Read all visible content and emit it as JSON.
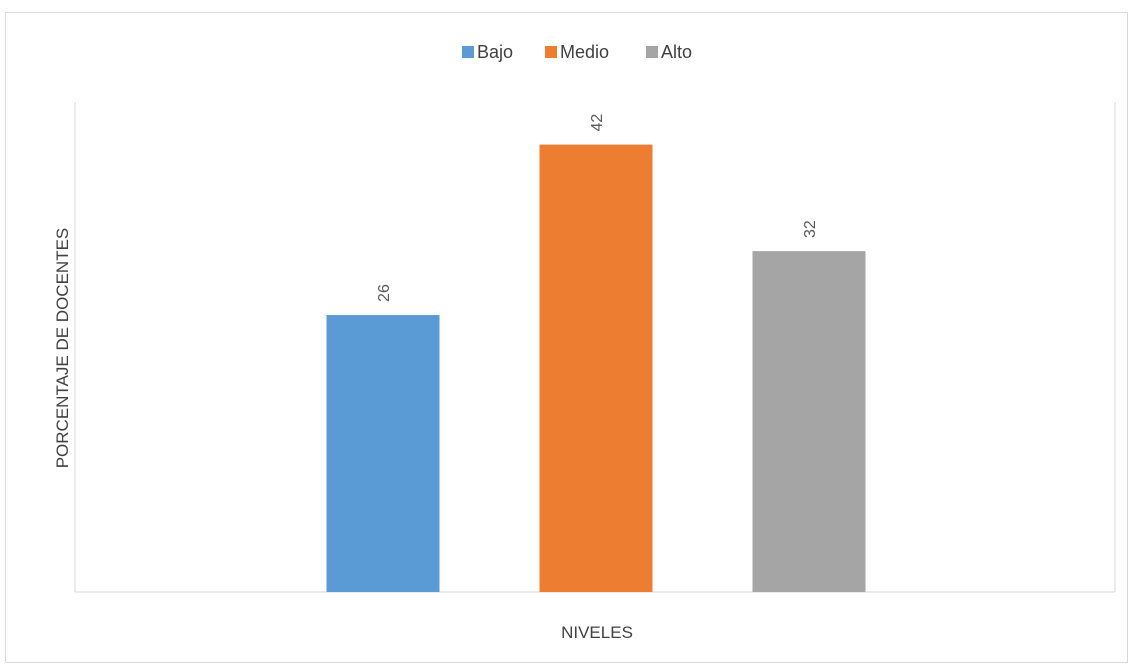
{
  "chart_data": {
    "type": "bar",
    "title": "",
    "categories": [
      "Bajo",
      "Medio",
      "Alto"
    ],
    "values": [
      26,
      42,
      32
    ],
    "colors": [
      "#5b9bd5",
      "#ed7d31",
      "#a5a5a5"
    ],
    "xlabel": "NIVELES",
    "ylabel": "PORCENTAJE DE DOCENTES",
    "ylim": [
      0,
      46
    ],
    "grid": false,
    "legend": "top-center",
    "legend_entries": [
      "Bajo",
      "Medio",
      "Alto"
    ],
    "data_labels": [
      "26",
      "42",
      "32"
    ]
  }
}
